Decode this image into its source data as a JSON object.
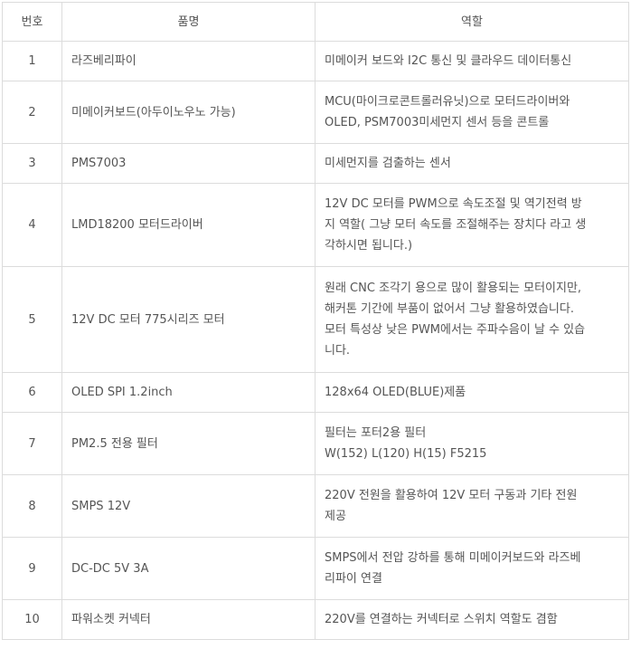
{
  "headers": {
    "no": "번호",
    "name": "품명",
    "role": "역할"
  },
  "rows": [
    {
      "no": "1",
      "name": "라즈베리파이",
      "role": [
        "미메이커 보드와 I2C 통신 및 클라우드 데이터통신"
      ]
    },
    {
      "no": "2",
      "name": "미메이커보드(아두이노우노 가능)",
      "role": [
        "MCU(마이크로콘트롤러유닛)으로 모터드라이버와",
        "OLED, PSM7003미세먼지 센서 등을 콘트롤"
      ]
    },
    {
      "no": "3",
      "name": "PMS7003",
      "role": [
        "미세먼지를 검출하는 센서"
      ]
    },
    {
      "no": "4",
      "name": "LMD18200 모터드라이버",
      "role": [
        "12V DC 모터를 PWM으로 속도조절 및 역기전력 방",
        "지 역할( 그냥 모터 속도를 조절해주는 장치다 라고 생",
        "각하시면 됩니다.)"
      ]
    },
    {
      "no": "5",
      "name": "12V DC 모터 775시리즈 모터",
      "role": [
        "원래 CNC 조각기 용으로 많이 활용되는 모터이지만,",
        "해커톤 기간에 부품이 없어서 그냥 활용하였습니다.",
        "모터 특성상 낮은 PWM에서는 주파수음이 날 수 있습",
        "니다."
      ]
    },
    {
      "no": "6",
      "name": "OLED SPI 1.2inch",
      "role": [
        "128x64 OLED(BLUE)제품"
      ]
    },
    {
      "no": "7",
      "name": "PM2.5 전용 필터",
      "role": [
        "필터는 포터2용 필터",
        "W(152) L(120) H(15) F5215"
      ]
    },
    {
      "no": "8",
      "name": "SMPS 12V",
      "role": [
        "220V 전원을 활용하여 12V 모터 구동과 기타 전원",
        "제공"
      ]
    },
    {
      "no": "9",
      "name": "DC-DC 5V 3A",
      "role": [
        "SMPS에서 전압 강하를 통해 미메이커보드와 라즈베",
        "리파이 연결"
      ]
    },
    {
      "no": "10",
      "name": "파워소켓 커넥터",
      "role": [
        "220V를 연결하는 커넥터로 스위치 역할도 겸함"
      ]
    }
  ]
}
